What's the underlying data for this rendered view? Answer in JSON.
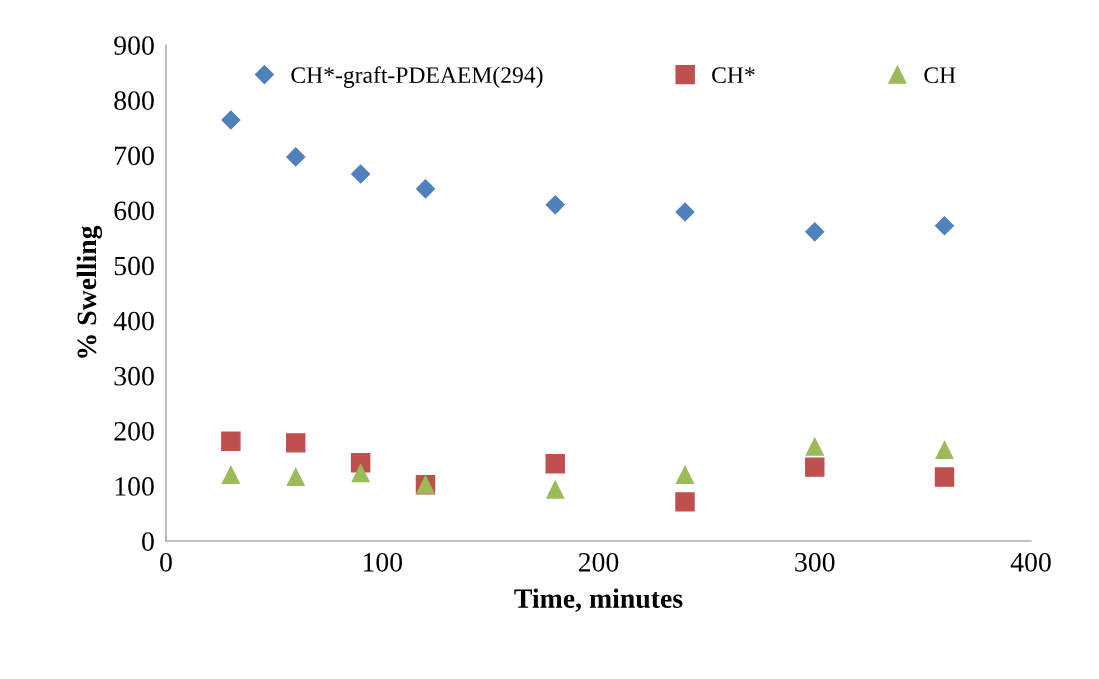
{
  "chart_data": {
    "type": "scatter",
    "xlabel": "Time, minutes",
    "ylabel": "% Swelling",
    "x": [
      30,
      60,
      90,
      120,
      180,
      240,
      300,
      360
    ],
    "series": [
      {
        "name": "CH*-graft-PDEAEM(294)",
        "color": "#4f81bd",
        "marker": "diamond",
        "values": [
          764,
          697,
          666,
          639,
          610,
          597,
          561,
          572
        ]
      },
      {
        "name": "CH*",
        "color": "#c0504d",
        "marker": "square",
        "values": [
          181,
          178,
          142,
          102,
          140,
          71,
          134,
          116
        ]
      },
      {
        "name": "CH",
        "color": "#9bbb59",
        "marker": "triangle",
        "values": [
          120,
          116,
          123,
          102,
          93,
          120,
          171,
          165
        ]
      }
    ],
    "xlim": [
      0,
      400
    ],
    "xticks": [
      0,
      100,
      200,
      300,
      400
    ],
    "ylim": [
      0,
      900
    ],
    "yticks": [
      0,
      100,
      200,
      300,
      400,
      500,
      600,
      700,
      800,
      900
    ],
    "grid": false,
    "legend": "top"
  }
}
